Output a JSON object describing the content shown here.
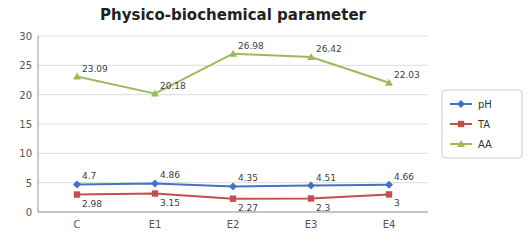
{
  "chart_data": {
    "type": "line",
    "title": "Physico-biochemical parameter",
    "categories": [
      "C",
      "E1",
      "E2",
      "E3",
      "E4"
    ],
    "series": [
      {
        "name": "pH",
        "color": "#4472C4",
        "marker": "diamond",
        "values": [
          4.7,
          4.86,
          4.35,
          4.51,
          4.66
        ]
      },
      {
        "name": "TA",
        "color": "#C0504D",
        "marker": "square",
        "values": [
          2.98,
          3.15,
          2.27,
          2.3,
          3.0
        ]
      },
      {
        "name": "AA",
        "color": "#9BBB59",
        "marker": "triangle",
        "values": [
          23.09,
          20.18,
          26.98,
          26.42,
          22.03
        ]
      }
    ],
    "ylim": [
      0,
      30
    ],
    "yticks": [
      0,
      5,
      10,
      15,
      20,
      25,
      30
    ],
    "grid": true,
    "legend": "right",
    "data_labels": true
  }
}
